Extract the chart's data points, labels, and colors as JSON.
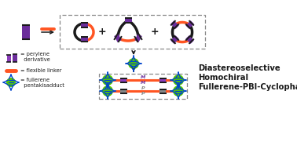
{
  "bg_color": "#ffffff",
  "purple": "#6B2D9B",
  "purple_light": "#8B3DBB",
  "orange": "#FF5522",
  "black": "#1a1a1a",
  "green": "#55CC00",
  "blue": "#0044CC",
  "gray": "#AAAAAA",
  "gray_dark": "#888888",
  "title_lines": [
    "Diastereoselective",
    "Homochiral",
    "Fullerene-PBI-Cyclophanes"
  ],
  "title_fontsize": 7.2,
  "title_fontweight": "bold",
  "legend_fontsize": 4.8,
  "label_perylene": "perylene\nderivative",
  "label_linker": "flexible linker",
  "label_fullerene": "fullerene\npentakisadduct"
}
